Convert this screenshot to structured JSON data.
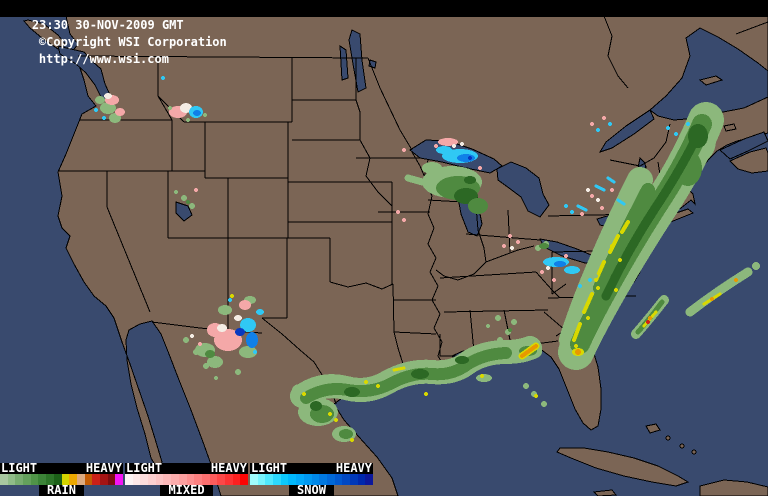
{
  "header": {
    "timestamp": "23:30 30-NOV-2009 GMT",
    "copyright": "©Copyright WSI Corporation",
    "url": "http://www.wsi.com"
  },
  "legend": {
    "light_label": "LIGHT",
    "heavy_label": "HEAVY",
    "sections": [
      {
        "label": "RAIN",
        "colors": [
          "#a8c8a0",
          "#90bc88",
          "#78ac70",
          "#64a05c",
          "#509448",
          "#3c8438",
          "#2c7428",
          "#1c6018",
          "#d4d400",
          "#eca800",
          "#dcaa80",
          "#c45c04",
          "#cc2018",
          "#a41414",
          "#7c0c10",
          "#f414f4"
        ]
      },
      {
        "label": "MIXED",
        "colors": [
          "#fcf4f4",
          "#fce8e8",
          "#fcdcdc",
          "#fcd0d0",
          "#fcc4c4",
          "#fcb8b8",
          "#fcacac",
          "#fca0a0",
          "#fc9090",
          "#fc8080",
          "#fc7070",
          "#fc5c5c",
          "#fc4848",
          "#fc3434",
          "#fc2020",
          "#fc0404"
        ]
      },
      {
        "label": "SNOW",
        "colors": [
          "#a0fcfc",
          "#78f4fc",
          "#50e8fc",
          "#2cd8fc",
          "#0cc8fc",
          "#00b8fc",
          "#00a8f8",
          "#0098f0",
          "#0088e8",
          "#0078e0",
          "#0068d8",
          "#0058d0",
          "#0048c4",
          "#0038b8",
          "#0028ac",
          "#0c189c"
        ]
      }
    ]
  },
  "palette": {
    "land": "#7b6555",
    "water": "#394a6e",
    "border": "#000000",
    "rain_light": "#8cb87c",
    "rain_mid": "#4f8a40",
    "rain_dark": "#2c6824",
    "rain_core": "#1a5414",
    "yellow": "#d8d800",
    "orange": "#e89800",
    "red": "#d02018",
    "pink": "#f4a8a8",
    "wprecip": "#f4ece4",
    "cyan": "#30c8f4",
    "blue": "#1080e8",
    "deep": "#0838c0"
  }
}
